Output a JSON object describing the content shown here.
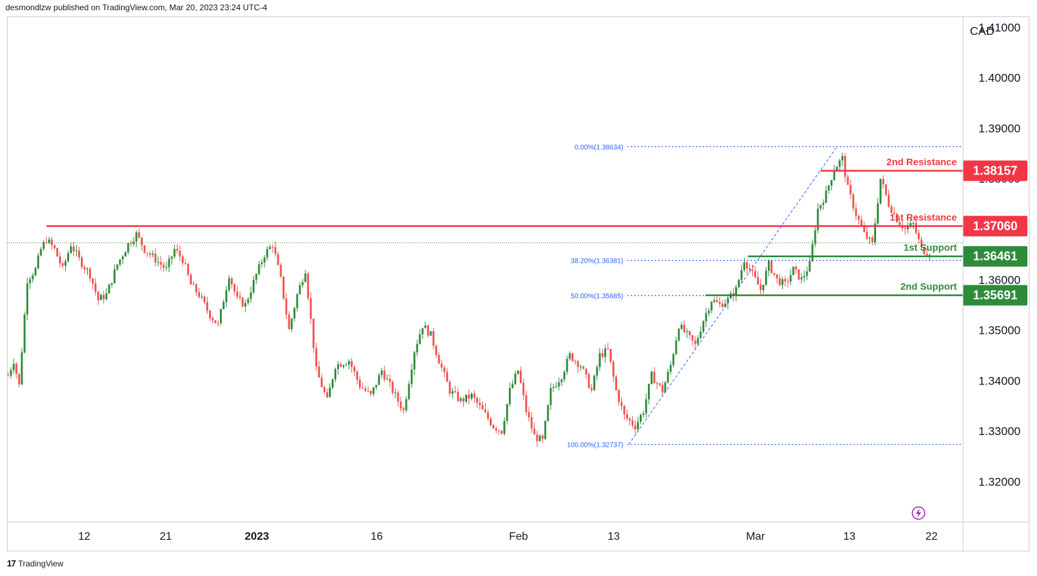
{
  "header": {
    "published": "desmondlzw published on TradingView.com, Mar 20, 2023 23:24 UTC-4"
  },
  "footer": {
    "logo": "17",
    "brand": "TradingView"
  },
  "colors": {
    "up": "#2f8a3a",
    "down": "#ef5350",
    "resistance": "#f23645",
    "support": "#2e8b3a",
    "fib": "#2962ff"
  },
  "chart_data": {
    "type": "candlestick",
    "currency_label": "CAD",
    "ylim": [
      1.312,
      1.412
    ],
    "y_ticks": [
      "1.41000",
      "1.40000",
      "1.39000",
      "1.38000",
      "1.37000",
      "1.36000",
      "1.35000",
      "1.34000",
      "1.33000",
      "1.32000"
    ],
    "x_ticks": [
      "12",
      "21",
      "2023",
      "16",
      "Feb",
      "13",
      "Mar",
      "13",
      "22"
    ],
    "levels": [
      {
        "label": "2nd Resistance",
        "value": "1.38157",
        "kind": "resistance"
      },
      {
        "label": "1st Resistance",
        "value": "1.37060",
        "kind": "resistance"
      },
      {
        "label": "1st Support",
        "value": "1.36461",
        "kind": "support"
      },
      {
        "label": "2nd Support",
        "value": "1.35691",
        "kind": "support"
      }
    ],
    "fibonacci": [
      {
        "label": "0.00%(1.38634)",
        "value": 1.38634
      },
      {
        "label": "38.20%(1.36381)",
        "value": 1.36381
      },
      {
        "label": "50.00%(1.35685)",
        "value": 1.35685
      },
      {
        "label": "100.00%(1.32737)",
        "value": 1.32737
      }
    ],
    "price_path": [
      [
        0,
        1.341
      ],
      [
        2,
        1.344
      ],
      [
        4,
        1.339
      ],
      [
        7,
        1.36
      ],
      [
        10,
        1.362
      ],
      [
        12,
        1.366
      ],
      [
        14,
        1.368
      ],
      [
        17,
        1.366
      ],
      [
        20,
        1.362
      ],
      [
        23,
        1.367
      ],
      [
        26,
        1.364
      ],
      [
        30,
        1.361
      ],
      [
        33,
        1.356
      ],
      [
        36,
        1.357
      ],
      [
        40,
        1.363
      ],
      [
        44,
        1.367
      ],
      [
        47,
        1.369
      ],
      [
        50,
        1.366
      ],
      [
        54,
        1.364
      ],
      [
        58,
        1.362
      ],
      [
        61,
        1.366
      ],
      [
        64,
        1.364
      ],
      [
        67,
        1.359
      ],
      [
        70,
        1.357
      ],
      [
        74,
        1.353
      ],
      [
        77,
        1.351
      ],
      [
        81,
        1.361
      ],
      [
        84,
        1.356
      ],
      [
        87,
        1.355
      ],
      [
        91,
        1.361
      ],
      [
        94,
        1.365
      ],
      [
        97,
        1.367
      ],
      [
        100,
        1.36
      ],
      [
        103,
        1.35
      ],
      [
        106,
        1.357
      ],
      [
        109,
        1.362
      ],
      [
        113,
        1.342
      ],
      [
        117,
        1.336
      ],
      [
        120,
        1.343
      ],
      [
        125,
        1.344
      ],
      [
        129,
        1.339
      ],
      [
        133,
        1.337
      ],
      [
        137,
        1.342
      ],
      [
        141,
        1.338
      ],
      [
        145,
        1.334
      ],
      [
        149,
        1.346
      ],
      [
        152,
        1.351
      ],
      [
        155,
        1.349
      ],
      [
        158,
        1.344
      ],
      [
        162,
        1.338
      ],
      [
        166,
        1.336
      ],
      [
        170,
        1.337
      ],
      [
        174,
        1.334
      ],
      [
        178,
        1.331
      ],
      [
        181,
        1.33
      ],
      [
        184,
        1.338
      ],
      [
        187,
        1.342
      ],
      [
        190,
        1.334
      ],
      [
        193,
        1.329
      ],
      [
        196,
        1.328
      ],
      [
        199,
        1.338
      ],
      [
        203,
        1.341
      ],
      [
        206,
        1.345
      ],
      [
        210,
        1.343
      ],
      [
        214,
        1.338
      ],
      [
        217,
        1.345
      ],
      [
        220,
        1.346
      ],
      [
        223,
        1.338
      ],
      [
        226,
        1.333
      ],
      [
        230,
        1.331
      ],
      [
        233,
        1.334
      ],
      [
        236,
        1.341
      ],
      [
        240,
        1.338
      ],
      [
        243,
        1.343
      ],
      [
        246,
        1.351
      ],
      [
        249,
        1.349
      ],
      [
        252,
        1.347
      ],
      [
        255,
        1.352
      ],
      [
        258,
        1.356
      ],
      [
        261,
        1.355
      ],
      [
        264,
        1.356
      ],
      [
        267,
        1.358
      ],
      [
        270,
        1.364
      ],
      [
        273,
        1.361
      ],
      [
        276,
        1.358
      ],
      [
        279,
        1.363
      ],
      [
        282,
        1.36
      ],
      [
        285,
        1.359
      ],
      [
        288,
        1.362
      ],
      [
        291,
        1.36
      ],
      [
        294,
        1.363
      ],
      [
        297,
        1.374
      ],
      [
        300,
        1.377
      ],
      [
        303,
        1.382
      ],
      [
        306,
        1.384
      ],
      [
        308,
        1.378
      ],
      [
        311,
        1.373
      ],
      [
        314,
        1.369
      ],
      [
        317,
        1.367
      ],
      [
        320,
        1.38
      ],
      [
        323,
        1.375
      ],
      [
        326,
        1.372
      ],
      [
        329,
        1.37
      ],
      [
        332,
        1.371
      ],
      [
        335,
        1.366
      ],
      [
        337,
        1.3655
      ]
    ]
  }
}
